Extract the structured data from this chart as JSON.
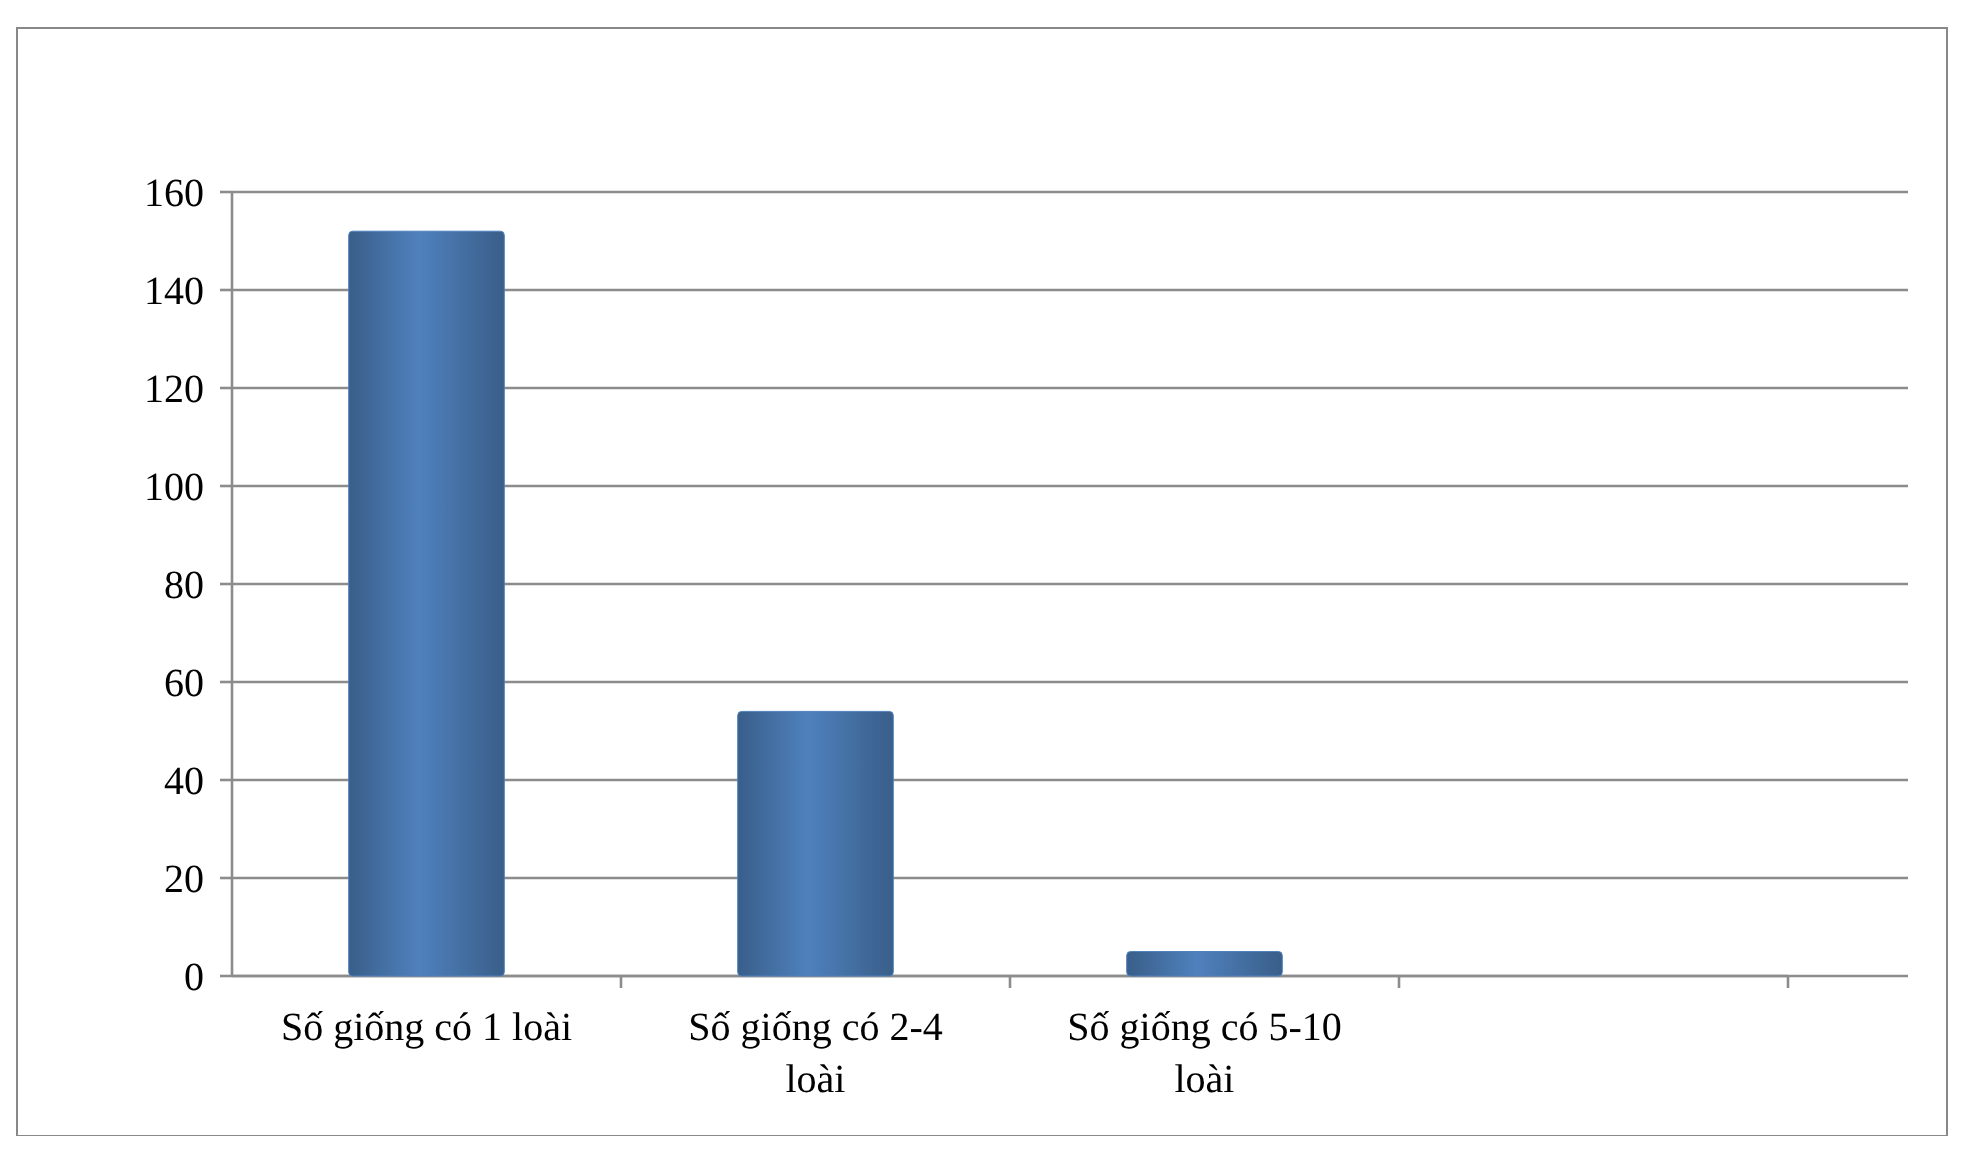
{
  "chart_data": {
    "type": "bar",
    "categories": [
      "Số giống có 1 loài",
      "Số giống có 2-4 loài",
      "Số giống có 5-10 loài",
      null
    ],
    "values": [
      152,
      54,
      5,
      null
    ],
    "color": "#4f81bd",
    "ylim": [
      0,
      160
    ],
    "yticks": [
      0,
      20,
      40,
      60,
      80,
      100,
      120,
      140,
      160
    ],
    "grid": "y"
  }
}
